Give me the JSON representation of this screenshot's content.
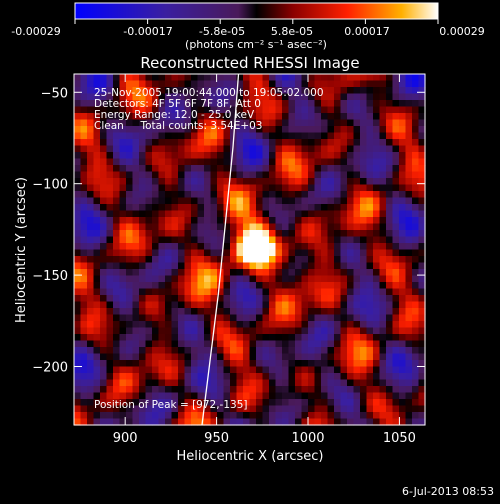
{
  "title": "Reconstructed RHESSI Image",
  "colorbar": {
    "tick_labels": [
      "-0.00029",
      "-0.00017",
      "-5.8e-05",
      "5.8e-05",
      "0.00017",
      "0.00029"
    ],
    "unit_label": "(photons cm⁻² s⁻¹ asec⁻²)"
  },
  "info": {
    "time_range": "25-Nov-2005 19:00:44.000 to 19:05:02.000",
    "detectors": "Detectors: 4F 5F 6F 7F 8F, Att 0",
    "energy_range": "Energy Range: 12.0 - 25.0 keV",
    "method_counts": "Clean     Total counts: 3.54E+03",
    "peak": "Position of Peak = [972,-135]"
  },
  "timestamp": "6-Jul-2013 08:53",
  "chart_data": {
    "type": "heatmap",
    "title": "Reconstructed RHESSI Image",
    "xlabel": "Heliocentric X (arcsec)",
    "ylabel": "Heliocentric Y (arcsec)",
    "xlim": [
      872,
      1064
    ],
    "ylim": [
      -232,
      -40
    ],
    "xticks": [
      900,
      950,
      1000,
      1050
    ],
    "yticks": [
      -50,
      -100,
      -150,
      -200
    ],
    "peak": {
      "x": 972,
      "y": -135
    },
    "colorbar_range": [
      -0.00029,
      0.00029
    ],
    "limb_curve": [
      [
        962,
        -40
      ],
      [
        959,
        -80
      ],
      [
        955,
        -120
      ],
      [
        951,
        -160
      ],
      [
        946,
        -200
      ],
      [
        942,
        -232
      ]
    ]
  }
}
